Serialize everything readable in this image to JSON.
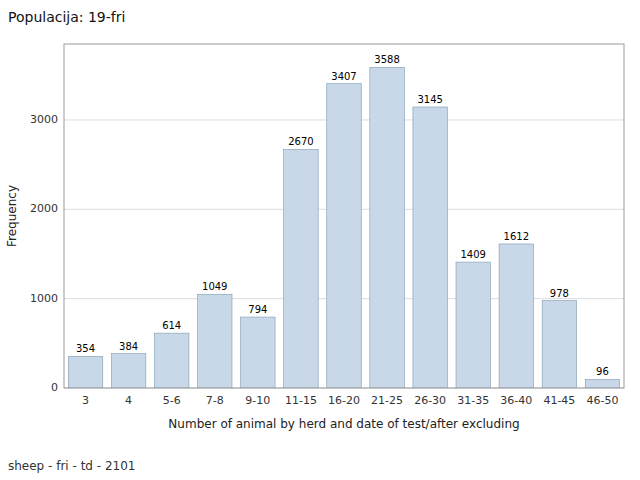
{
  "chart_data": {
    "type": "bar",
    "title": "Populacija: 19-fri",
    "footer": "sheep - fri - td - 2101",
    "xlabel": "Number of animal by herd and date of test/after excluding",
    "ylabel": "Frequency",
    "categories": [
      "3",
      "4",
      "5-6",
      "7-8",
      "9-10",
      "11-15",
      "16-20",
      "21-25",
      "26-30",
      "31-35",
      "36-40",
      "41-45",
      "46-50"
    ],
    "values": [
      354,
      384,
      614,
      1049,
      794,
      2670,
      3407,
      3588,
      3145,
      1409,
      1612,
      978,
      96
    ],
    "color": "#c8d8e8",
    "ylim": [
      0,
      3850
    ],
    "yticks": [
      0,
      1000,
      2000,
      3000
    ],
    "grid": true,
    "data_labels": true
  }
}
